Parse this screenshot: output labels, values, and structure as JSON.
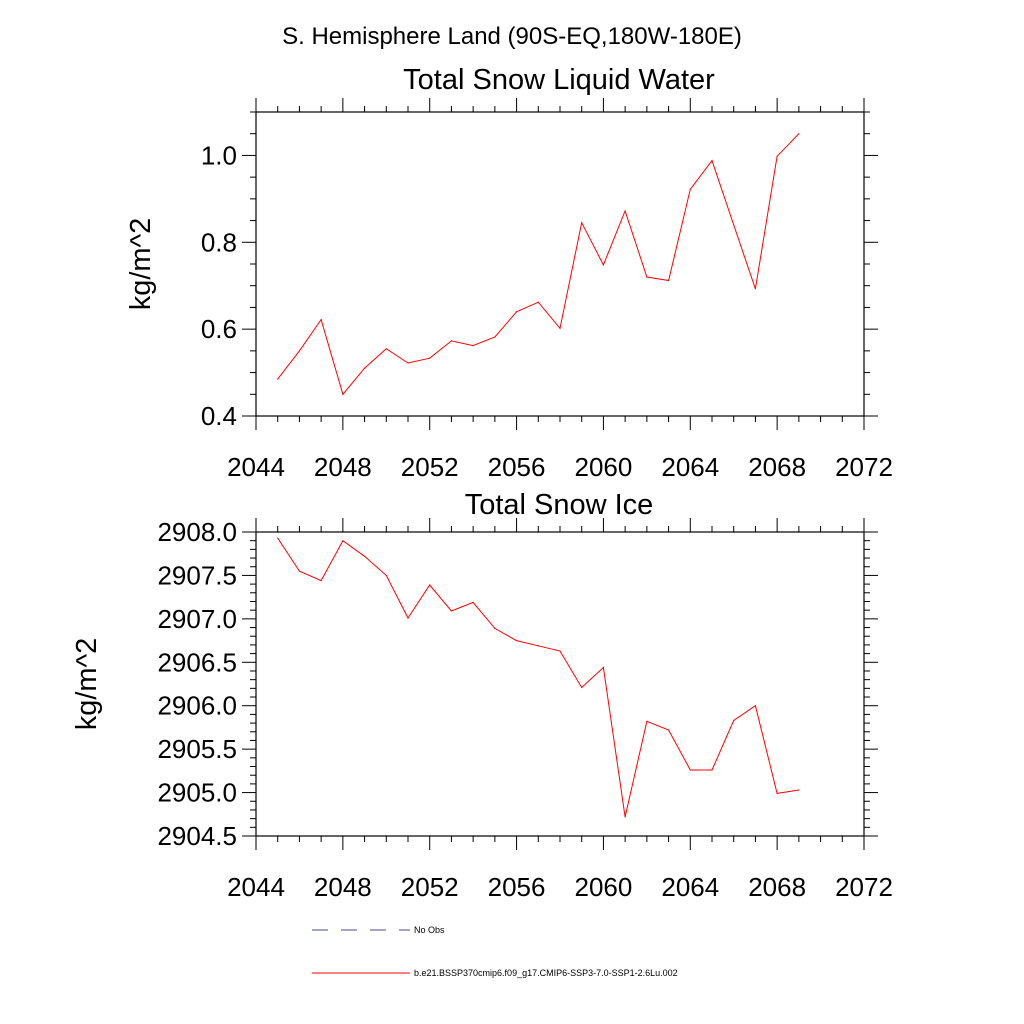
{
  "figure_title": "S. Hemisphere Land (90S-EQ,180W-180E)",
  "chart_data": [
    {
      "type": "line",
      "title": "Total Snow Liquid Water",
      "xlabel": "",
      "ylabel": "kg/m^2",
      "xlim": [
        2044,
        2072
      ],
      "ylim": [
        0.4,
        1.1
      ],
      "x_ticks": [
        "2044",
        "2048",
        "2052",
        "2056",
        "2060",
        "2064",
        "2068",
        "2072"
      ],
      "x_tick_values": [
        2044,
        2048,
        2052,
        2056,
        2060,
        2064,
        2068,
        2072
      ],
      "y_ticks": [
        "0.4",
        "0.6",
        "0.8",
        "1.0"
      ],
      "y_tick_values": [
        0.4,
        0.6,
        0.8,
        1.0
      ],
      "grid": false,
      "series": [
        {
          "name": "b.e21.BSSP370cmip6.f09_g17.CMIP6-SSP3-7.0-SSP1-2.6Lu.002",
          "color": "#ff0000",
          "x": [
            2045,
            2046,
            2047,
            2048,
            2049,
            2050,
            2051,
            2052,
            2053,
            2054,
            2055,
            2056,
            2057,
            2058,
            2059,
            2060,
            2061,
            2062,
            2063,
            2064,
            2065,
            2066,
            2067,
            2068,
            2069
          ],
          "values": [
            0.485,
            0.55,
            0.622,
            0.45,
            0.51,
            0.555,
            0.522,
            0.533,
            0.573,
            0.562,
            0.582,
            0.64,
            0.662,
            0.602,
            0.845,
            0.748,
            0.872,
            0.72,
            0.712,
            0.922,
            0.988,
            0.84,
            0.693,
            0.998,
            1.05
          ]
        }
      ]
    },
    {
      "type": "line",
      "title": "Total Snow Ice",
      "xlabel": "",
      "ylabel": "kg/m^2",
      "xlim": [
        2044,
        2072
      ],
      "ylim": [
        2904.5,
        2908.0
      ],
      "x_ticks": [
        "2044",
        "2048",
        "2052",
        "2056",
        "2060",
        "2064",
        "2068",
        "2072"
      ],
      "x_tick_values": [
        2044,
        2048,
        2052,
        2056,
        2060,
        2064,
        2068,
        2072
      ],
      "y_ticks": [
        "2904.5",
        "2905.0",
        "2905.5",
        "2906.0",
        "2906.5",
        "2907.0",
        "2907.5",
        "2908.0"
      ],
      "y_tick_values": [
        2904.5,
        2905.0,
        2905.5,
        2906.0,
        2906.5,
        2907.0,
        2907.5,
        2908.0
      ],
      "grid": false,
      "series": [
        {
          "name": "b.e21.BSSP370cmip6.f09_g17.CMIP6-SSP3-7.0-SSP1-2.6Lu.002",
          "color": "#ff0000",
          "x": [
            2045,
            2046,
            2047,
            2048,
            2049,
            2050,
            2051,
            2052,
            2053,
            2054,
            2055,
            2056,
            2057,
            2058,
            2059,
            2060,
            2061,
            2062,
            2063,
            2064,
            2065,
            2066,
            2067,
            2068,
            2069
          ],
          "values": [
            2907.93,
            2907.55,
            2907.44,
            2907.9,
            2907.72,
            2907.5,
            2907.01,
            2907.39,
            2907.09,
            2907.19,
            2906.89,
            2906.75,
            2906.69,
            2906.63,
            2906.21,
            2906.44,
            2904.72,
            2905.82,
            2905.72,
            2905.26,
            2905.26,
            2905.83,
            2906.0,
            2904.99,
            2905.03
          ]
        }
      ]
    }
  ],
  "legend": {
    "placement": "bottom",
    "items": [
      {
        "label": "No Obs",
        "style": "dashed",
        "color": "#4a4a88"
      },
      {
        "label": "b.e21.BSSP370cmip6.f09_g17.CMIP6-SSP3-7.0-SSP1-2.6Lu.002",
        "style": "solid",
        "color": "#ff0000"
      }
    ]
  }
}
